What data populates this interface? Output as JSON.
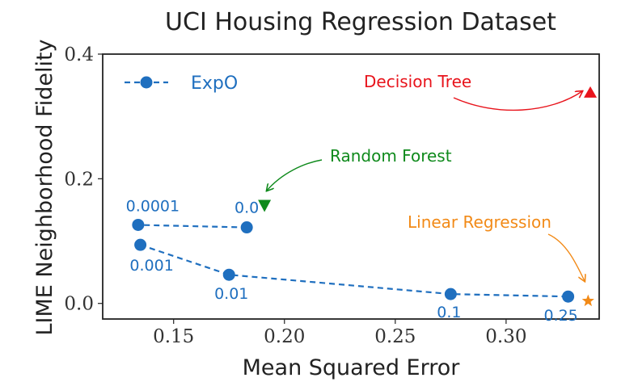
{
  "chart_data": {
    "type": "scatter",
    "title": "UCI Housing Regression Dataset",
    "xlabel": "Mean Squared Error",
    "ylabel": "LIME Neighborhood Fidelity",
    "xlim": [
      0.118,
      0.342
    ],
    "ylim": [
      -0.025,
      0.4
    ],
    "xticks": [
      {
        "value": 0.15,
        "label": "0.15"
      },
      {
        "value": 0.2,
        "label": "0.20"
      },
      {
        "value": 0.25,
        "label": "0.25"
      },
      {
        "value": 0.3,
        "label": "0.30"
      }
    ],
    "yticks": [
      {
        "value": 0.0,
        "label": "0.0"
      },
      {
        "value": 0.2,
        "label": "0.2"
      },
      {
        "value": 0.4,
        "label": "0.4"
      }
    ],
    "grid": false,
    "legend": {
      "placement": "top-left",
      "entries": [
        "ExpO"
      ]
    },
    "series": [
      {
        "name": "ExpO",
        "color": "#1f6fbf",
        "marker": "circle",
        "linestyle": "dashed",
        "points": [
          {
            "label": "0.0",
            "x": 0.183,
            "y": 0.122
          },
          {
            "label": "0.0001",
            "x": 0.134,
            "y": 0.126
          },
          {
            "label": "0.001",
            "x": 0.135,
            "y": 0.094
          },
          {
            "label": "0.01",
            "x": 0.175,
            "y": 0.046
          },
          {
            "label": "0.1",
            "x": 0.275,
            "y": 0.015
          },
          {
            "label": "0.25",
            "x": 0.328,
            "y": 0.011
          }
        ]
      }
    ],
    "baselines": [
      {
        "name": "Decision Tree",
        "x": 0.338,
        "y": 0.338,
        "marker": "triangle-up",
        "color": "#e8141c"
      },
      {
        "name": "Random Forest",
        "x": 0.191,
        "y": 0.157,
        "marker": "triangle-down",
        "color": "#0f8a1c"
      },
      {
        "name": "Linear Regression",
        "x": 0.337,
        "y": 0.004,
        "marker": "star",
        "color": "#f28a17"
      }
    ]
  }
}
